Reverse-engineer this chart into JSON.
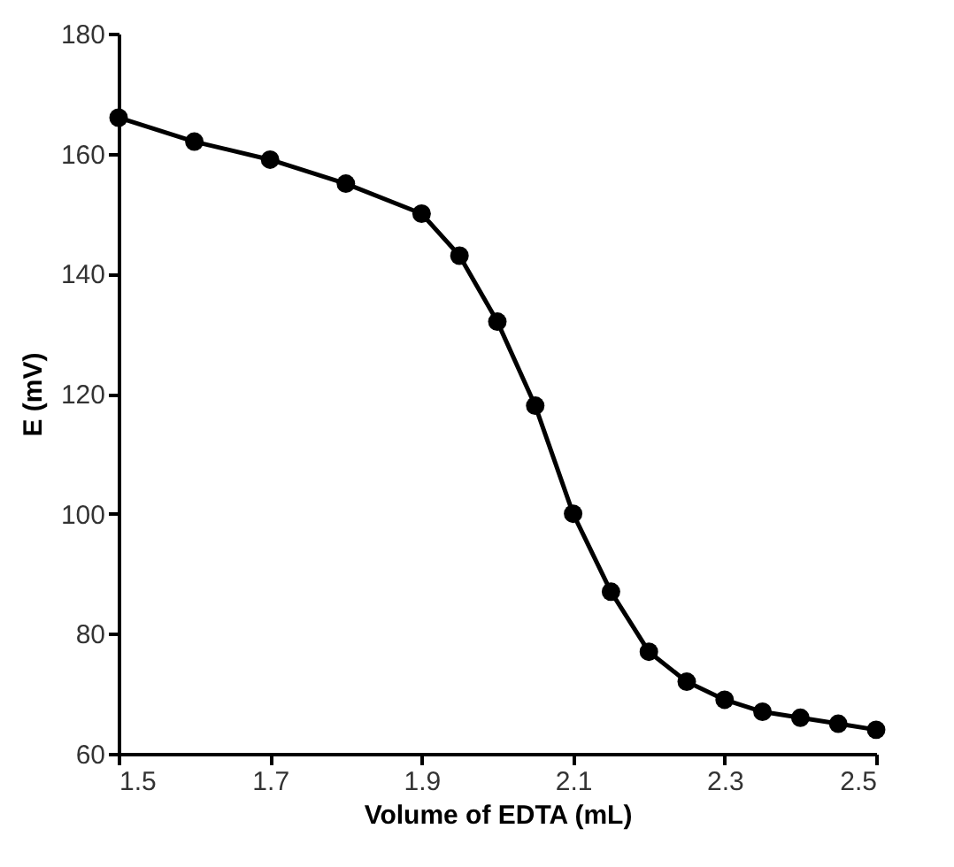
{
  "chart_data": {
    "type": "line",
    "xlabel": "Volume of EDTA (mL)",
    "ylabel": "E (mV)",
    "x": [
      1.5,
      1.6,
      1.7,
      1.8,
      1.9,
      1.95,
      2.0,
      2.05,
      2.1,
      2.15,
      2.2,
      2.25,
      2.3,
      2.35,
      2.4,
      2.45,
      2.5
    ],
    "series": [
      {
        "color": "#000000",
        "values": [
          166,
          162,
          159,
          155,
          150,
          143,
          132,
          118,
          100,
          87,
          77,
          72,
          69,
          67,
          66,
          65,
          64
        ]
      }
    ],
    "xlim": [
      1.5,
      2.5
    ],
    "xticks": [
      1.5,
      1.7,
      1.9,
      2.1,
      2.3,
      2.5
    ],
    "ylim": [
      60,
      180
    ],
    "yticks": [
      60,
      80,
      100,
      120,
      140,
      160,
      180
    ],
    "marker": "circle",
    "line_style": "solid",
    "grid": false
  }
}
